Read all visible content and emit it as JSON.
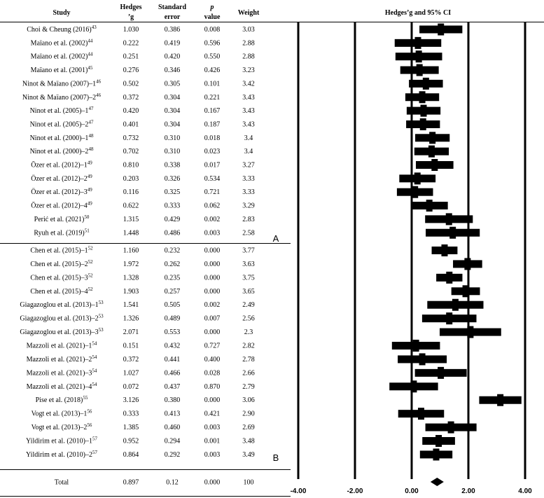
{
  "headers": {
    "study": "Study",
    "hedges_line1": "Hedges",
    "hedges_line2": "’g",
    "se_line1": "Standard",
    "se_line2": "error",
    "p_line1": "p",
    "p_line2": "value",
    "weight": "Weight",
    "plot_title": "Hedges’g and 95% CI"
  },
  "group_labels": {
    "A": "A",
    "B": "B"
  },
  "chart_data": {
    "type": "forest",
    "title": "Hedges’g and 95% CI",
    "xlim": [
      -4,
      4
    ],
    "ticks": [
      -4,
      -2,
      0,
      2,
      4
    ],
    "tick_labels": [
      "-4.00",
      "-2.00",
      "0.00",
      "2.00",
      "4.00"
    ],
    "studies": [
      {
        "name": "Choi & Cheung (2016)",
        "ref": "43",
        "g": "1.030",
        "se": "0.386",
        "p": "0.008",
        "weight": "3.03",
        "lo": 0.273,
        "hi": 1.787,
        "group": "A"
      },
      {
        "name": "Maïano et al. (2002)",
        "ref": "44",
        "g": "0.222",
        "se": "0.419",
        "p": "0.596",
        "weight": "2.88",
        "lo": -0.599,
        "hi": 1.043,
        "group": "A"
      },
      {
        "name": "Maïano et al. (2002)",
        "ref": "44",
        "g": "0.251",
        "se": "0.420",
        "p": "0.550",
        "weight": "2.88",
        "lo": -0.572,
        "hi": 1.074,
        "group": "A"
      },
      {
        "name": "Maïano et al. (2001)",
        "ref": "45",
        "g": "0.276",
        "se": "0.346",
        "p": "0.426",
        "weight": "3.23",
        "lo": -0.402,
        "hi": 0.954,
        "group": "A"
      },
      {
        "name": "Ninot & Maïano (2007)–1",
        "ref": "46",
        "g": "0.502",
        "se": "0.305",
        "p": "0.101",
        "weight": "3.42",
        "lo": -0.096,
        "hi": 1.1,
        "group": "A"
      },
      {
        "name": "Ninot & Maïano (2007)–2",
        "ref": "46",
        "g": "0.372",
        "se": "0.304",
        "p": "0.221",
        "weight": "3.43",
        "lo": -0.224,
        "hi": 0.968,
        "group": "A"
      },
      {
        "name": "Ninot et al. (2005)–1",
        "ref": "47",
        "g": "0.420",
        "se": "0.304",
        "p": "0.167",
        "weight": "3.43",
        "lo": -0.176,
        "hi": 1.016,
        "group": "A"
      },
      {
        "name": "Ninot et al. (2005)–2",
        "ref": "47",
        "g": "0.401",
        "se": "0.304",
        "p": "0.187",
        "weight": "3.43",
        "lo": -0.195,
        "hi": 0.997,
        "group": "A"
      },
      {
        "name": "Ninot et al. (2000)–1",
        "ref": "48",
        "g": "0.732",
        "se": "0.310",
        "p": "0.018",
        "weight": "3.4",
        "lo": 0.124,
        "hi": 1.34,
        "group": "A"
      },
      {
        "name": "Ninot et al. (2000)–2",
        "ref": "48",
        "g": "0.702",
        "se": "0.310",
        "p": "0.023",
        "weight": "3.4",
        "lo": 0.094,
        "hi": 1.31,
        "group": "A"
      },
      {
        "name": "Özer et al. (2012)–1",
        "ref": "49",
        "g": "0.810",
        "se": "0.338",
        "p": "0.017",
        "weight": "3.27",
        "lo": 0.148,
        "hi": 1.472,
        "group": "A"
      },
      {
        "name": "Özer et al. (2012)–2",
        "ref": "49",
        "g": "0.203",
        "se": "0.326",
        "p": "0.534",
        "weight": "3.33",
        "lo": -0.436,
        "hi": 0.842,
        "group": "A"
      },
      {
        "name": "Özer et al. (2012)–3",
        "ref": "49",
        "g": "0.116",
        "se": "0.325",
        "p": "0.721",
        "weight": "3.33",
        "lo": -0.521,
        "hi": 0.753,
        "group": "A"
      },
      {
        "name": "Özer et al. (2012)–4",
        "ref": "49",
        "g": "0.622",
        "se": "0.333",
        "p": "0.062",
        "weight": "3.29",
        "lo": -0.031,
        "hi": 1.275,
        "group": "A"
      },
      {
        "name": "Perić et al. (2021)",
        "ref": "50",
        "g": "1.315",
        "se": "0.429",
        "p": "0.002",
        "weight": "2.83",
        "lo": 0.474,
        "hi": 2.156,
        "group": "A"
      },
      {
        "name": "Ryuh et al. (2019)",
        "ref": "51",
        "g": "1.448",
        "se": "0.486",
        "p": "0.003",
        "weight": "2.58",
        "lo": 0.495,
        "hi": 2.401,
        "group": "A"
      },
      {
        "name": "Chen et al. (2015)–1",
        "ref": "52",
        "g": "1.160",
        "se": "0.232",
        "p": "0.000",
        "weight": "3.77",
        "lo": 0.705,
        "hi": 1.615,
        "group": "B"
      },
      {
        "name": "Chen et al. (2015)–2",
        "ref": "52",
        "g": "1.972",
        "se": "0.262",
        "p": "0.000",
        "weight": "3.63",
        "lo": 1.458,
        "hi": 2.486,
        "group": "B"
      },
      {
        "name": "Chen et al. (2015)–3",
        "ref": "52",
        "g": "1.328",
        "se": "0.235",
        "p": "0.000",
        "weight": "3.75",
        "lo": 0.867,
        "hi": 1.789,
        "group": "B"
      },
      {
        "name": "Chen et al. (2015)–4",
        "ref": "52",
        "g": "1.903",
        "se": "0.257",
        "p": "0.000",
        "weight": "3.65",
        "lo": 1.399,
        "hi": 2.407,
        "group": "B"
      },
      {
        "name": "Giagazoglou et al. (2013)–1",
        "ref": "53",
        "g": "1.541",
        "se": "0.505",
        "p": "0.002",
        "weight": "2.49",
        "lo": 0.551,
        "hi": 2.531,
        "group": "B"
      },
      {
        "name": "Giagazoglou et al. (2013)–2",
        "ref": "53",
        "g": "1.326",
        "se": "0.489",
        "p": "0.007",
        "weight": "2.56",
        "lo": 0.368,
        "hi": 2.284,
        "group": "B"
      },
      {
        "name": "Giagazoglou et al. (2013)–3",
        "ref": "53",
        "g": "2.071",
        "se": "0.553",
        "p": "0.000",
        "weight": "2.3",
        "lo": 0.987,
        "hi": 3.155,
        "group": "B"
      },
      {
        "name": "Mazzoli et al. (2021)–1",
        "ref": "54",
        "g": "0.151",
        "se": "0.432",
        "p": "0.727",
        "weight": "2.82",
        "lo": -0.696,
        "hi": 0.998,
        "group": "B"
      },
      {
        "name": "Mazzoli et al. (2021)–2",
        "ref": "54",
        "g": "0.372",
        "se": "0.441",
        "p": "0.400",
        "weight": "2.78",
        "lo": -0.492,
        "hi": 1.236,
        "group": "B"
      },
      {
        "name": "Mazzoli et al. (2021)–3",
        "ref": "54",
        "g": "1.027",
        "se": "0.466",
        "p": "0.028",
        "weight": "2.66",
        "lo": 0.114,
        "hi": 1.94,
        "group": "B"
      },
      {
        "name": "Mazzoli et al. (2021)–4",
        "ref": "54",
        "g": "0.072",
        "se": "0.437",
        "p": "0.870",
        "weight": "2.79",
        "lo": -0.785,
        "hi": 0.929,
        "group": "B"
      },
      {
        "name": "Pise et al. (2018)",
        "ref": "55",
        "g": "3.126",
        "se": "0.380",
        "p": "0.000",
        "weight": "3.06",
        "lo": 2.381,
        "hi": 3.871,
        "group": "B"
      },
      {
        "name": "Vogt et al. (2013)–1",
        "ref": "56",
        "g": "0.333",
        "se": "0.413",
        "p": "0.421",
        "weight": "2.90",
        "lo": -0.476,
        "hi": 1.142,
        "group": "B"
      },
      {
        "name": "Vogt et al. (2013)–2",
        "ref": "56",
        "g": "1.385",
        "se": "0.460",
        "p": "0.003",
        "weight": "2.69",
        "lo": 0.483,
        "hi": 2.287,
        "group": "B"
      },
      {
        "name": "Yildirim et al. (2010)–1",
        "ref": "57",
        "g": "0.952",
        "se": "0.294",
        "p": "0.001",
        "weight": "3.48",
        "lo": 0.376,
        "hi": 1.528,
        "group": "B"
      },
      {
        "name": "Yildirim et al. (2010)–2",
        "ref": "57",
        "g": "0.864",
        "se": "0.292",
        "p": "0.003",
        "weight": "3.49",
        "lo": 0.292,
        "hi": 1.436,
        "group": "B"
      }
    ],
    "total": {
      "name": "Total",
      "g": "0.897",
      "se": "0.12",
      "p": "0.000",
      "weight": "100",
      "lo": 0.662,
      "hi": 1.132
    }
  }
}
